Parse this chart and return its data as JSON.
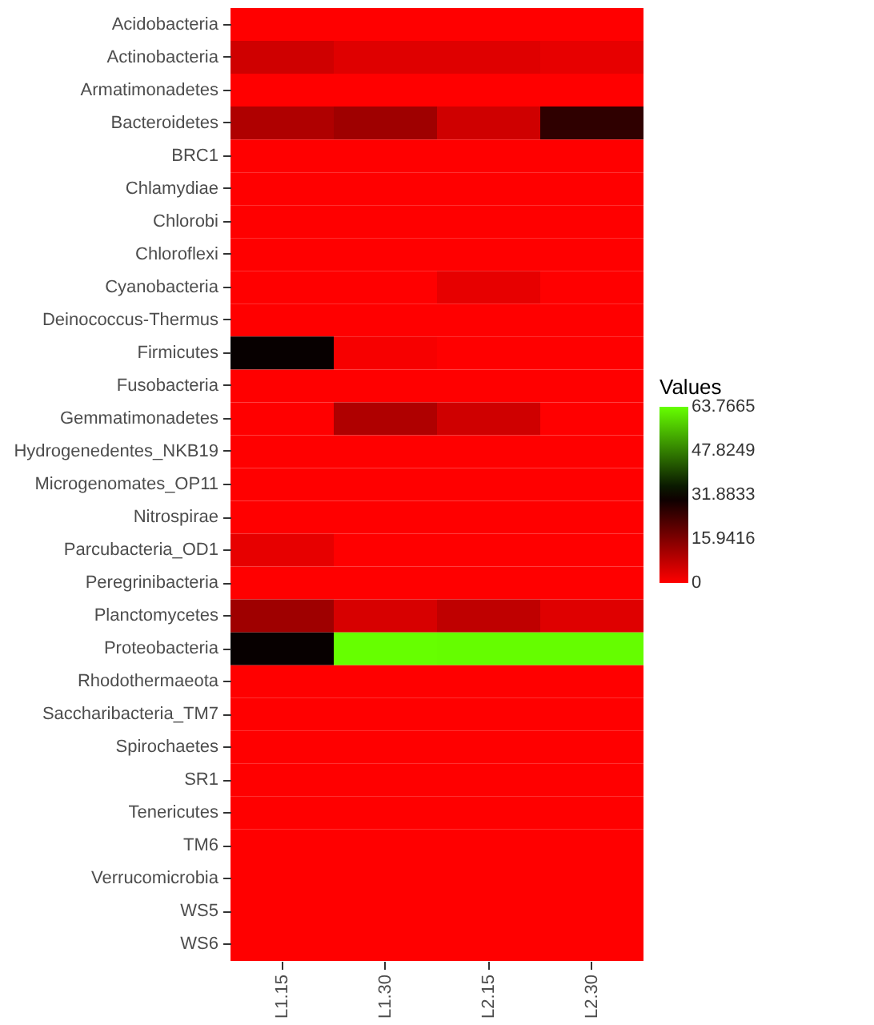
{
  "chart_data": {
    "type": "heatmap",
    "legend_title": "Values",
    "categories": [
      "L1.15",
      "L1.30",
      "L2.15",
      "L2.30"
    ],
    "y_categories": [
      "Acidobacteria",
      "Actinobacteria",
      "Armatimonadetes",
      "Bacteroidetes",
      "BRC1",
      "Chlamydiae",
      "Chlorobi",
      "Chloroflexi",
      "Cyanobacteria",
      "Deinococcus-Thermus",
      "Firmicutes",
      "Fusobacteria",
      "Gemmatimonadetes",
      "Hydrogenedentes_NKB19",
      "Microgenomates_OP11",
      "Nitrospirae",
      "Parcubacteria_OD1",
      "Peregrinibacteria",
      "Planctomycetes",
      "Proteobacteria",
      "Rhodothermaeota",
      "Saccharibacteria_TM7",
      "Spirochaetes",
      "SR1",
      "Tenericutes",
      "TM6",
      "Verrucomicrobia",
      "WS5",
      "WS6"
    ],
    "cells": [
      [
        0,
        0,
        0,
        0
      ],
      [
        6,
        4,
        4,
        3
      ],
      [
        0,
        0,
        0,
        0
      ],
      [
        10,
        12,
        6,
        26
      ],
      [
        0,
        0,
        0,
        0
      ],
      [
        0,
        0,
        0,
        0
      ],
      [
        0,
        0,
        0,
        0
      ],
      [
        0,
        0,
        0,
        0
      ],
      [
        0,
        0,
        3,
        0
      ],
      [
        0,
        0,
        0,
        0
      ],
      [
        31,
        1,
        0,
        0
      ],
      [
        0,
        0,
        0,
        0
      ],
      [
        0,
        10,
        6,
        0
      ],
      [
        0,
        0,
        0,
        0
      ],
      [
        0,
        0,
        0,
        0
      ],
      [
        0,
        0,
        0,
        0
      ],
      [
        3,
        0,
        0,
        0
      ],
      [
        0,
        0,
        0,
        0
      ],
      [
        12,
        5,
        8,
        4
      ],
      [
        31,
        63.7665,
        63.5,
        63.5
      ],
      [
        0,
        0,
        0,
        0
      ],
      [
        0,
        0,
        0,
        0
      ],
      [
        0,
        0,
        0,
        0
      ],
      [
        0,
        0,
        0,
        0
      ],
      [
        0,
        0,
        0,
        0
      ],
      [
        0,
        0,
        0,
        0
      ],
      [
        0,
        0,
        0,
        0
      ],
      [
        0,
        0,
        0,
        0
      ],
      [
        0,
        0,
        0,
        0
      ]
    ],
    "clim": [
      0,
      63.7665
    ],
    "cticks": [
      0,
      15.9416,
      31.8833,
      47.8249,
      63.7665
    ]
  }
}
